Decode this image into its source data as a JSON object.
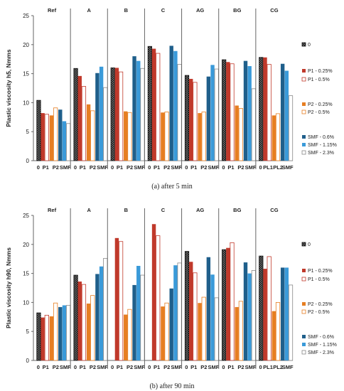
{
  "chart_data": [
    {
      "type": "bar",
      "caption": "(a) after 5 min",
      "ylabel": "Plastic viscosity h5, Nmms",
      "ylim": [
        0,
        25
      ],
      "yticks": [
        0,
        5,
        10,
        15,
        20,
        25
      ],
      "groups": [
        {
          "name": "Ref",
          "ticks": [
            "0",
            "P1",
            "P2",
            "SMF"
          ]
        },
        {
          "name": "A",
          "ticks": [
            "0",
            "P1",
            "P2",
            "SMF"
          ]
        },
        {
          "name": "B",
          "ticks": [
            "0",
            "P1",
            "P2",
            "SMF"
          ]
        },
        {
          "name": "C",
          "ticks": [
            "0",
            "P1",
            "P2",
            "SMF"
          ]
        },
        {
          "name": "AG",
          "ticks": [
            "0",
            "P1",
            "P2",
            "SMF"
          ]
        },
        {
          "name": "BG",
          "ticks": [
            "0",
            "P1",
            "P2",
            "SMF"
          ]
        },
        {
          "name": "CG",
          "ticks": [
            "0",
            "PL1",
            "PL2",
            "SMF"
          ]
        }
      ],
      "series": [
        {
          "name": "0",
          "color": "#222222",
          "pattern": "checker",
          "values": [
            10.4,
            15.9,
            16.0,
            19.7,
            14.7,
            17.4,
            17.8
          ]
        },
        {
          "name": "P1 - 0.25%",
          "color": "#c0392b",
          "pattern": "solid",
          "values": [
            8.2,
            14.6,
            16.0,
            19.3,
            14.1,
            17.0,
            17.8
          ]
        },
        {
          "name": "P1 - 0.5%",
          "color": "#c0392b",
          "pattern": "outline",
          "values": [
            8.0,
            12.8,
            15.3,
            18.5,
            13.5,
            16.7,
            16.6
          ]
        },
        {
          "name": "P2 - 0.25%",
          "color": "#e67e22",
          "pattern": "solid",
          "values": [
            7.8,
            9.7,
            8.5,
            8.3,
            8.2,
            9.5,
            7.8
          ]
        },
        {
          "name": "P2 - 0.5%",
          "color": "#e67e22",
          "pattern": "outline",
          "values": [
            9.1,
            8.6,
            8.3,
            8.4,
            8.4,
            9.0,
            8.1
          ]
        },
        {
          "name": "SMF - 0.6%",
          "color": "#1f5f8b",
          "pattern": "solid",
          "values": [
            8.8,
            15.1,
            18.0,
            19.8,
            14.5,
            17.2,
            16.7
          ]
        },
        {
          "name": "SMF - 1.15%",
          "color": "#3a9ad9",
          "pattern": "solid",
          "values": [
            6.8,
            16.2,
            17.2,
            18.9,
            16.5,
            16.3,
            15.5
          ]
        },
        {
          "name": "SMF - 2.3%",
          "color": "#888888",
          "pattern": "outline",
          "values": [
            6.4,
            12.6,
            15.9,
            16.6,
            15.8,
            12.4,
            11.2
          ]
        }
      ]
    },
    {
      "type": "bar",
      "caption": "(b) after 90 min",
      "ylabel": "Plastic viscosity h90, Nmms",
      "ylim": [
        0,
        25
      ],
      "yticks": [
        0,
        5,
        10,
        15,
        20,
        25
      ],
      "groups": [
        {
          "name": "Ref",
          "ticks": [
            "0",
            "P1",
            "P2",
            "SMF"
          ]
        },
        {
          "name": "A",
          "ticks": [
            "0",
            "P1",
            "P2",
            "SMF"
          ]
        },
        {
          "name": "B",
          "ticks": [
            "0",
            "P1",
            "P2",
            "SMF"
          ]
        },
        {
          "name": "C",
          "ticks": [
            "0",
            "P1",
            "P2",
            "SMF"
          ]
        },
        {
          "name": "AG",
          "ticks": [
            "0",
            "P1",
            "P2",
            "SMF"
          ]
        },
        {
          "name": "BG",
          "ticks": [
            "0",
            "P1",
            "P2",
            "SMF"
          ]
        },
        {
          "name": "CG",
          "ticks": [
            "0",
            "PL1",
            "PL2",
            "SMF"
          ]
        }
      ],
      "series": [
        {
          "name": "0",
          "color": "#222222",
          "pattern": "checker",
          "values": [
            8.2,
            14.7,
            null,
            null,
            18.8,
            19.1,
            18.0
          ]
        },
        {
          "name": "P1 - 0.25%",
          "color": "#c0392b",
          "pattern": "solid",
          "values": [
            7.4,
            13.6,
            21.1,
            23.5,
            17.0,
            19.4,
            15.8
          ]
        },
        {
          "name": "P1 - 0.5%",
          "color": "#c0392b",
          "pattern": "outline",
          "values": [
            7.8,
            13.1,
            20.5,
            21.5,
            15.1,
            20.3,
            17.9
          ]
        },
        {
          "name": "P2 - 0.25%",
          "color": "#e67e22",
          "pattern": "solid",
          "values": [
            7.6,
            9.8,
            7.9,
            9.3,
            9.9,
            9.2,
            8.5
          ]
        },
        {
          "name": "P2 - 0.5%",
          "color": "#e67e22",
          "pattern": "outline",
          "values": [
            9.9,
            11.2,
            8.8,
            9.9,
            10.9,
            10.2,
            10.0
          ]
        },
        {
          "name": "SMF - 0.6%",
          "color": "#1f5f8b",
          "pattern": "solid",
          "values": [
            9.2,
            14.9,
            13.0,
            12.4,
            17.8,
            16.9,
            16.0
          ]
        },
        {
          "name": "SMF - 1.15%",
          "color": "#3a9ad9",
          "pattern": "solid",
          "values": [
            9.5,
            16.2,
            16.3,
            16.4,
            14.8,
            15.0,
            16.0
          ]
        },
        {
          "name": "SMF - 2.3%",
          "color": "#888888",
          "pattern": "outline",
          "values": [
            9.5,
            17.6,
            14.7,
            16.8,
            10.8,
            15.5,
            13.0
          ]
        }
      ]
    }
  ]
}
